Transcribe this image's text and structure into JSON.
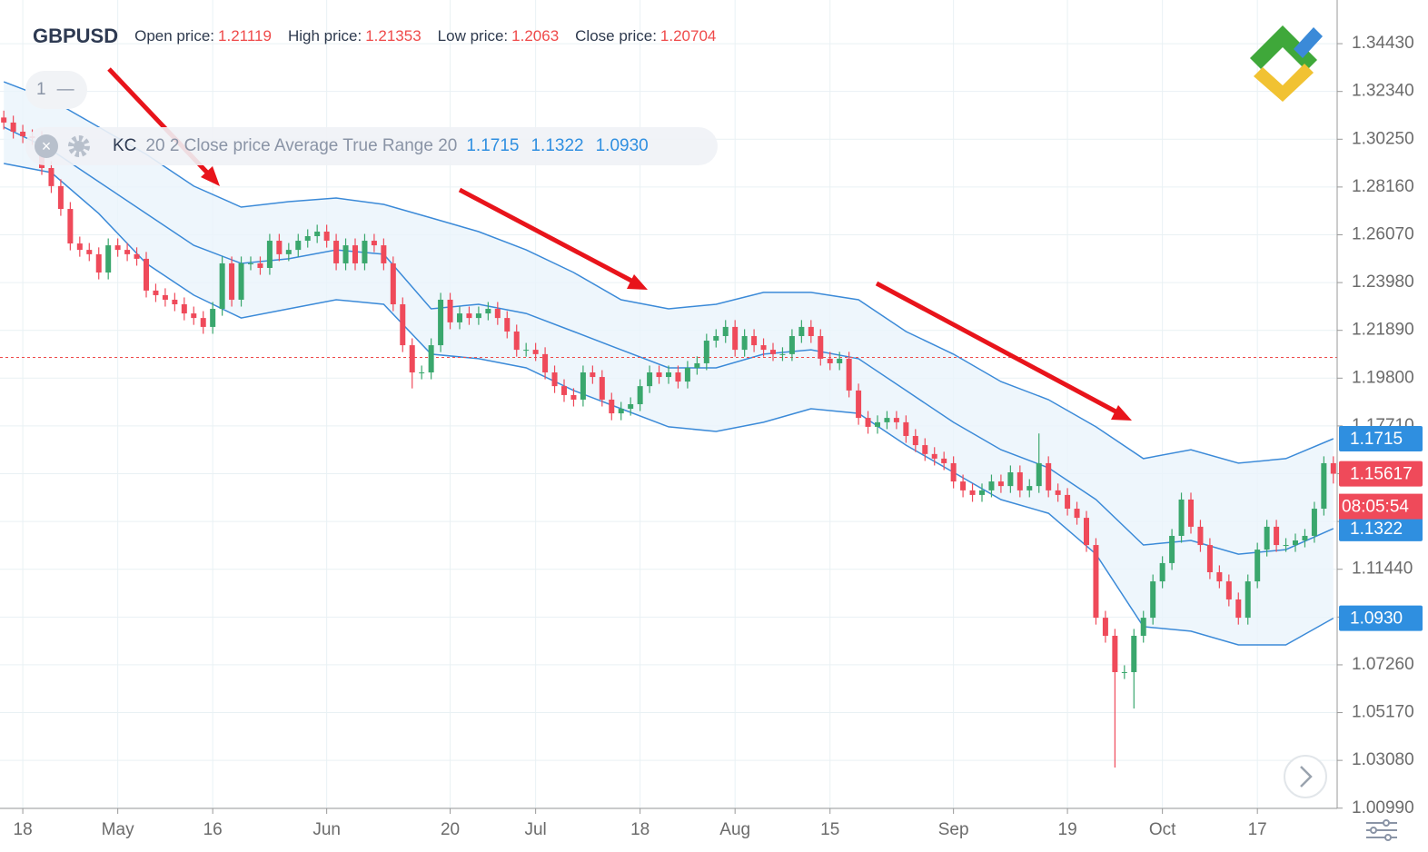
{
  "chart_data": {
    "type": "candlestick",
    "symbol": "GBPUSD",
    "header": {
      "open_label": "Open price:",
      "open": 1.21119,
      "high_label": "High price:",
      "high": 1.21353,
      "low_label": "Low price:",
      "low": 1.2063,
      "close_label": "Close price:",
      "close": 1.20704
    },
    "pane": "1",
    "indicator": {
      "name": "KC",
      "params": "20 2 Close price Average True Range 20",
      "values": [
        1.1715,
        1.1322,
        1.093
      ],
      "value_labels": [
        "1.1715",
        "1.1322",
        "1.0930"
      ],
      "colors": [
        "#2f8fe0",
        "#2f8fe0",
        "#2f8fe0"
      ]
    },
    "current_price": {
      "value": 1.15617,
      "label": "1.15617"
    },
    "countdown": "08:05:54",
    "xlim": [
      -0.4,
      140.4
    ],
    "ylim": [
      1.0098,
      1.3634
    ],
    "xticks": [
      {
        "value": 2,
        "label": "18"
      },
      {
        "value": 12,
        "label": "May"
      },
      {
        "value": 22,
        "label": "16"
      },
      {
        "value": 34,
        "label": "Jun"
      },
      {
        "value": 47,
        "label": "20"
      },
      {
        "value": 56,
        "label": "Jul"
      },
      {
        "value": 67,
        "label": "18"
      },
      {
        "value": 77,
        "label": "Aug"
      },
      {
        "value": 87,
        "label": "15"
      },
      {
        "value": 100,
        "label": "Sep"
      },
      {
        "value": 112,
        "label": "19"
      },
      {
        "value": 122,
        "label": "Oct"
      },
      {
        "value": 132,
        "label": "17"
      }
    ],
    "yticks": [
      {
        "value": 1.3443,
        "label": "1.34430"
      },
      {
        "value": 1.3234,
        "label": "1.32340"
      },
      {
        "value": 1.3025,
        "label": "1.30250"
      },
      {
        "value": 1.2816,
        "label": "1.28160"
      },
      {
        "value": 1.2607,
        "label": "1.26070"
      },
      {
        "value": 1.2398,
        "label": "1.23980"
      },
      {
        "value": 1.2189,
        "label": "1.21890"
      },
      {
        "value": 1.198,
        "label": "1.19800"
      },
      {
        "value": 1.1771,
        "label": "1.17710"
      },
      {
        "value": 1.1562,
        "label": "1.15620"
      },
      {
        "value": 1.1353,
        "label": "1.13530"
      },
      {
        "value": 1.1144,
        "label": "1.11440"
      },
      {
        "value": 1.0935,
        "label": "1.09350"
      },
      {
        "value": 1.0726,
        "label": "1.07260"
      },
      {
        "value": 1.0517,
        "label": "1.05170"
      },
      {
        "value": 1.0308,
        "label": "1.03080"
      },
      {
        "value": 1.0099,
        "label": "1.00990"
      }
    ],
    "grid": true,
    "up_color": "#3aa76d",
    "down_color": "#ef4a5a",
    "band_color": "#3b8ad8",
    "band_fill": "#eaf4fb",
    "open": [
      1.312,
      1.3098,
      1.3058,
      1.3038,
      1.303,
      1.2899,
      1.282,
      1.272,
      1.2569,
      1.2541,
      1.2522,
      1.2442,
      1.2561,
      1.2541,
      1.2522,
      1.2502,
      1.2363,
      1.2343,
      1.2323,
      1.2303,
      1.2263,
      1.2243,
      1.2204,
      1.2283,
      1.2482,
      1.2323,
      1.2482,
      1.2482,
      1.2462,
      1.2581,
      1.2522,
      1.2541,
      1.2581,
      1.2601,
      1.2621,
      1.2581,
      1.2482,
      1.2561,
      1.2482,
      1.2581,
      1.2561,
      1.2482,
      1.2303,
      1.2124,
      1.2005,
      1.2005,
      1.2124,
      1.2323,
      1.2224,
      1.2263,
      1.2243,
      1.2263,
      1.2283,
      1.2243,
      1.2184,
      1.2104,
      1.2104,
      1.2085,
      1.2005,
      1.1945,
      1.1906,
      1.1886,
      1.2005,
      1.1985,
      1.1886,
      1.1826,
      1.1846,
      1.1866,
      1.1945,
      1.2005,
      1.1985,
      1.2005,
      1.1965,
      1.2025,
      1.2045,
      1.2144,
      1.2164,
      1.2204,
      1.2104,
      1.2164,
      1.2124,
      1.2104,
      1.2085,
      1.2085,
      1.2164,
      1.2204,
      1.2164,
      1.2065,
      1.2045,
      1.2065,
      1.1926,
      1.1806,
      1.1767,
      1.1787,
      1.1806,
      1.1787,
      1.1727,
      1.1687,
      1.1648,
      1.1628,
      1.1608,
      1.1528,
      1.1489,
      1.1469,
      1.1489,
      1.1528,
      1.1508,
      1.1568,
      1.1489,
      1.1508,
      1.1608,
      1.1489,
      1.1469,
      1.1409,
      1.1369,
      1.125,
      1.0932,
      1.0853,
      1.0694,
      1.0694,
      1.0853,
      1.0932,
      1.1091,
      1.1171,
      1.129,
      1.1449,
      1.133,
      1.125,
      1.1131,
      1.1091,
      1.1012,
      1.0932,
      1.1091,
      1.123,
      1.133,
      1.125,
      1.125,
      1.127,
      1.129,
      1.1409,
      1.1608
    ],
    "high": [
      1.315,
      1.3128,
      1.3088,
      1.3068,
      1.306,
      1.2929,
      1.285,
      1.275,
      1.2599,
      1.2571,
      1.2552,
      1.2591,
      1.2591,
      1.2571,
      1.2552,
      1.2532,
      1.2393,
      1.2373,
      1.2353,
      1.2333,
      1.2293,
      1.2273,
      1.2313,
      1.2512,
      1.2512,
      1.2512,
      1.2512,
      1.2512,
      1.2611,
      1.2611,
      1.2571,
      1.2611,
      1.2631,
      1.2651,
      1.2651,
      1.2611,
      1.2591,
      1.2591,
      1.2611,
      1.2611,
      1.2591,
      1.2512,
      1.2333,
      1.2154,
      1.2035,
      1.2154,
      1.2353,
      1.2353,
      1.2293,
      1.2293,
      1.2293,
      1.2313,
      1.2313,
      1.2273,
      1.2214,
      1.2134,
      1.2134,
      1.2115,
      1.2035,
      1.1975,
      1.1936,
      1.2035,
      1.2035,
      1.2015,
      1.1916,
      1.1876,
      1.1896,
      1.1975,
      1.2035,
      1.2035,
      1.2035,
      1.2035,
      1.2055,
      1.2075,
      1.2174,
      1.2194,
      1.2234,
      1.2234,
      1.2194,
      1.2194,
      1.2154,
      1.2134,
      1.2115,
      1.2194,
      1.2234,
      1.2234,
      1.2194,
      1.2095,
      1.2095,
      1.2095,
      1.1956,
      1.1836,
      1.1817,
      1.1836,
      1.1836,
      1.1817,
      1.1757,
      1.1717,
      1.1678,
      1.1658,
      1.1638,
      1.1558,
      1.1519,
      1.1519,
      1.1558,
      1.1558,
      1.1598,
      1.1598,
      1.1538,
      1.1738,
      1.1638,
      1.1519,
      1.1499,
      1.1439,
      1.1399,
      1.128,
      1.0962,
      1.0883,
      1.0724,
      1.0883,
      1.0962,
      1.1121,
      1.1201,
      1.132,
      1.1479,
      1.1479,
      1.136,
      1.128,
      1.1161,
      1.1121,
      1.1042,
      1.1121,
      1.126,
      1.136,
      1.136,
      1.128,
      1.13,
      1.132,
      1.1439,
      1.1638,
      1.1638
    ],
    "low": [
      1.3068,
      1.3028,
      1.3008,
      1.3,
      1.2869,
      1.279,
      1.269,
      1.2539,
      1.2511,
      1.2492,
      1.2412,
      1.2412,
      1.2511,
      1.2492,
      1.2472,
      1.2333,
      1.2313,
      1.2293,
      1.2273,
      1.2233,
      1.2213,
      1.2174,
      1.2174,
      1.2253,
      1.2293,
      1.2293,
      1.2452,
      1.2432,
      1.2432,
      1.2492,
      1.2492,
      1.2511,
      1.2551,
      1.2571,
      1.2551,
      1.2452,
      1.2452,
      1.2452,
      1.2452,
      1.2531,
      1.2452,
      1.2273,
      1.2094,
      1.1935,
      1.1975,
      1.1975,
      1.2094,
      1.2194,
      1.2194,
      1.2213,
      1.2213,
      1.2233,
      1.2213,
      1.2154,
      1.2074,
      1.2074,
      1.2055,
      1.1975,
      1.1915,
      1.1876,
      1.1856,
      1.1856,
      1.1955,
      1.1856,
      1.1796,
      1.1796,
      1.1816,
      1.1836,
      1.1915,
      1.1955,
      1.1955,
      1.1935,
      1.1935,
      1.1995,
      1.2015,
      1.2114,
      1.2134,
      1.2074,
      1.2074,
      1.2094,
      1.2074,
      1.2055,
      1.2055,
      1.2055,
      1.2134,
      1.2134,
      1.2035,
      1.2015,
      1.2015,
      1.1896,
      1.1776,
      1.1737,
      1.1737,
      1.1757,
      1.1757,
      1.1697,
      1.1657,
      1.1618,
      1.1598,
      1.1578,
      1.1498,
      1.1459,
      1.1439,
      1.1439,
      1.1459,
      1.1478,
      1.1478,
      1.1459,
      1.1459,
      1.1478,
      1.1459,
      1.1439,
      1.1379,
      1.1339,
      1.122,
      1.0902,
      1.0823,
      1.0277,
      1.0664,
      1.0535,
      1.0823,
      1.0902,
      1.1061,
      1.1141,
      1.126,
      1.13,
      1.122,
      1.1101,
      1.1061,
      1.0982,
      1.0902,
      1.0902,
      1.1061,
      1.12,
      1.122,
      1.122,
      1.122,
      1.124,
      1.126,
      1.1379,
      1.1519
    ],
    "close": [
      1.3098,
      1.3058,
      1.3038,
      1.303,
      1.2899,
      1.282,
      1.272,
      1.2569,
      1.2541,
      1.2522,
      1.2442,
      1.2561,
      1.2541,
      1.2522,
      1.2502,
      1.2363,
      1.2343,
      1.2323,
      1.2303,
      1.2263,
      1.2243,
      1.2204,
      1.2283,
      1.2482,
      1.2323,
      1.2482,
      1.2482,
      1.2462,
      1.2581,
      1.2522,
      1.2541,
      1.2581,
      1.2601,
      1.2621,
      1.2581,
      1.2482,
      1.2561,
      1.2482,
      1.2581,
      1.2561,
      1.2482,
      1.2303,
      1.2124,
      1.2005,
      1.2005,
      1.2124,
      1.2323,
      1.2224,
      1.2263,
      1.2243,
      1.2263,
      1.2283,
      1.2243,
      1.2184,
      1.2104,
      1.2104,
      1.2085,
      1.2005,
      1.1945,
      1.1906,
      1.1886,
      1.2005,
      1.1985,
      1.1886,
      1.1826,
      1.1846,
      1.1866,
      1.1945,
      1.2005,
      1.1985,
      1.2005,
      1.1965,
      1.2025,
      1.2045,
      1.2144,
      1.2164,
      1.2204,
      1.2104,
      1.2164,
      1.2124,
      1.2104,
      1.2085,
      1.2085,
      1.2164,
      1.2204,
      1.2164,
      1.2065,
      1.2045,
      1.2065,
      1.1926,
      1.1806,
      1.1767,
      1.1787,
      1.1806,
      1.1787,
      1.1727,
      1.1687,
      1.1648,
      1.1628,
      1.1608,
      1.1528,
      1.1489,
      1.1469,
      1.1489,
      1.1528,
      1.1508,
      1.1568,
      1.1489,
      1.1508,
      1.1608,
      1.1489,
      1.1469,
      1.1409,
      1.1369,
      1.125,
      1.0932,
      1.0853,
      1.0694,
      1.0694,
      1.0853,
      1.0932,
      1.1091,
      1.1171,
      1.129,
      1.1449,
      1.133,
      1.125,
      1.1131,
      1.1091,
      1.1012,
      1.0932,
      1.1091,
      1.123,
      1.133,
      1.125,
      1.125,
      1.127,
      1.129,
      1.1409,
      1.1608,
      1.1562
    ],
    "bands": {
      "x": [
        0,
        5,
        10,
        15,
        20,
        25,
        30,
        35,
        40,
        45,
        50,
        55,
        60,
        65,
        70,
        75,
        80,
        85,
        90,
        95,
        100,
        105,
        110,
        115,
        120,
        125,
        130,
        135,
        140
      ],
      "upper": [
        1.3276,
        1.3197,
        1.3078,
        1.2959,
        1.282,
        1.2728,
        1.2752,
        1.2768,
        1.274,
        1.2681,
        1.2621,
        1.2541,
        1.2442,
        1.2323,
        1.2283,
        1.2303,
        1.2355,
        1.2355,
        1.2323,
        1.2184,
        1.2085,
        1.1965,
        1.1886,
        1.1767,
        1.1628,
        1.1667,
        1.1608,
        1.1628,
        1.1715
      ],
      "middle": [
        1.3078,
        1.2978,
        1.2839,
        1.27,
        1.2561,
        1.2482,
        1.2502,
        1.2541,
        1.2522,
        1.2283,
        1.2303,
        1.2263,
        1.2184,
        1.2104,
        1.2025,
        1.2025,
        1.2085,
        1.2104,
        1.2065,
        1.1926,
        1.1787,
        1.1667,
        1.1588,
        1.1449,
        1.125,
        1.127,
        1.121,
        1.123,
        1.1322
      ],
      "lower": [
        1.2919,
        1.2879,
        1.27,
        1.2482,
        1.2343,
        1.2243,
        1.2283,
        1.2323,
        1.2303,
        1.2085,
        1.2065,
        1.2025,
        1.1926,
        1.1846,
        1.1767,
        1.1747,
        1.1787,
        1.1846,
        1.1826,
        1.1687,
        1.1568,
        1.1449,
        1.1389,
        1.121,
        1.0893,
        1.0873,
        1.0813,
        1.0813,
        1.093
      ]
    }
  }
}
